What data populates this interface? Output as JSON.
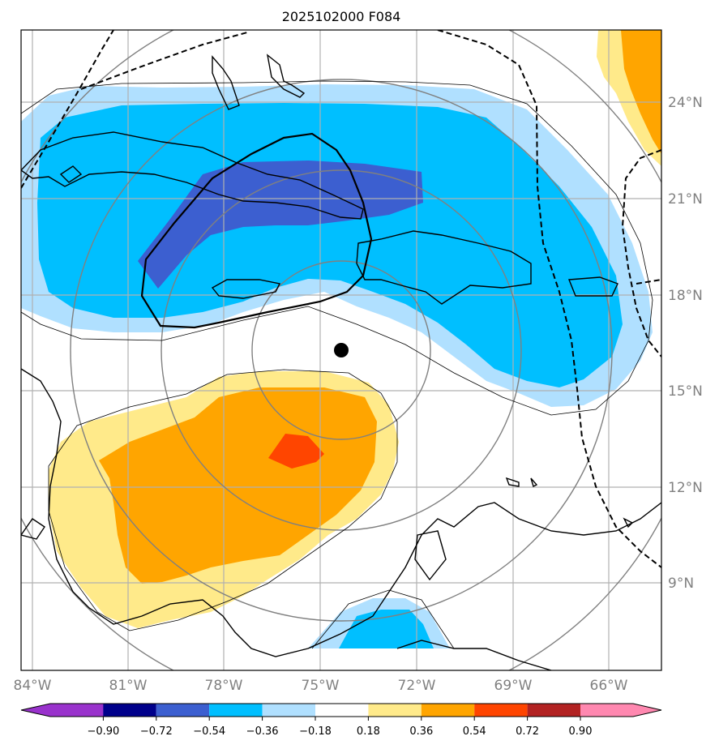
{
  "title": "2025102000 F084",
  "lon_labels": [
    "84°W",
    "81°W",
    "78°W",
    "75°W",
    "72°W",
    "69°W",
    "66°W"
  ],
  "lat_labels": [
    "24°N",
    "21°N",
    "18°N",
    "15°N",
    "12°N",
    "9°N"
  ],
  "colorbar": {
    "tick_labels": [
      "−0.90",
      "−0.72",
      "−0.54",
      "−0.36",
      "−0.18",
      "0.18",
      "0.36",
      "0.54",
      "0.72",
      "0.90"
    ],
    "colors": [
      "#9932cc",
      "#00008b",
      "#3c5fd0",
      "#00bfff",
      "#b0e0ff",
      "#ffffff",
      "#ffea8a",
      "#ffa500",
      "#ff4500",
      "#b22222",
      "#ff88b0"
    ]
  },
  "center_marker": {
    "lon": -74.3,
    "lat": 16.3
  },
  "colors": {
    "blue_light": "#b0e0ff",
    "blue": "#00bfff",
    "blue_dark": "#3c5fd0",
    "yellow": "#ffea8a",
    "orange": "#ffa500",
    "red_orange": "#ff4500"
  }
}
